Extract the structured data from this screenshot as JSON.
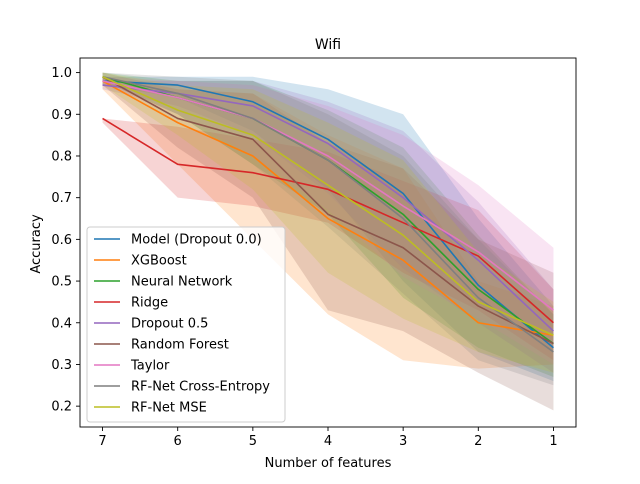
{
  "chart_data": {
    "type": "line",
    "title": "Wifi",
    "xlabel": "Number of features",
    "ylabel": "Accuracy",
    "x": [
      7,
      6,
      5,
      4,
      3,
      2,
      1
    ],
    "x_axis_reversed": true,
    "xlim": [
      7.3,
      0.7
    ],
    "ylim": [
      0.15,
      1.035
    ],
    "yticks": [
      0.2,
      0.3,
      0.4,
      0.5,
      0.6,
      0.7,
      0.8,
      0.9,
      1.0
    ],
    "ytick_labels": [
      "0.2",
      "0.3",
      "0.4",
      "0.5",
      "0.6",
      "0.7",
      "0.8",
      "0.9",
      "1.0"
    ],
    "xtick_labels": [
      "7",
      "6",
      "5",
      "4",
      "3",
      "2",
      "1"
    ],
    "grid": false,
    "legend_position": "lower-left",
    "series": [
      {
        "name": "Model (Dropout 0.0)",
        "color": "#1f77b4",
        "values": [
          0.98,
          0.97,
          0.93,
          0.84,
          0.71,
          0.49,
          0.34
        ],
        "lower": [
          0.97,
          0.94,
          0.86,
          0.72,
          0.5,
          0.33,
          0.26
        ],
        "upper": [
          0.99,
          0.99,
          0.99,
          0.96,
          0.9,
          0.65,
          0.44
        ]
      },
      {
        "name": "XGBoost",
        "color": "#ff7f0e",
        "values": [
          0.98,
          0.88,
          0.8,
          0.65,
          0.55,
          0.4,
          0.37
        ],
        "lower": [
          0.96,
          0.78,
          0.6,
          0.42,
          0.31,
          0.29,
          0.3
        ],
        "upper": [
          0.99,
          0.96,
          0.95,
          0.85,
          0.77,
          0.5,
          0.44
        ]
      },
      {
        "name": "Neural Network",
        "color": "#2ca02c",
        "values": [
          0.99,
          0.94,
          0.89,
          0.79,
          0.66,
          0.48,
          0.35
        ],
        "lower": [
          0.98,
          0.9,
          0.78,
          0.66,
          0.46,
          0.34,
          0.27
        ],
        "upper": [
          1.0,
          0.98,
          0.98,
          0.91,
          0.82,
          0.61,
          0.42
        ]
      },
      {
        "name": "Ridge",
        "color": "#d62728",
        "values": [
          0.89,
          0.78,
          0.76,
          0.72,
          0.64,
          0.56,
          0.4
        ],
        "lower": [
          0.88,
          0.7,
          0.68,
          0.64,
          0.52,
          0.43,
          0.31
        ],
        "upper": [
          0.89,
          0.87,
          0.84,
          0.81,
          0.74,
          0.67,
          0.48
        ]
      },
      {
        "name": "Dropout 0.5",
        "color": "#9467bd",
        "values": [
          0.97,
          0.95,
          0.92,
          0.83,
          0.7,
          0.55,
          0.38
        ],
        "lower": [
          0.96,
          0.92,
          0.85,
          0.71,
          0.53,
          0.4,
          0.28
        ],
        "upper": [
          0.98,
          0.98,
          0.98,
          0.93,
          0.86,
          0.69,
          0.48
        ]
      },
      {
        "name": "Random Forest",
        "color": "#8c564b",
        "values": [
          0.99,
          0.89,
          0.84,
          0.66,
          0.58,
          0.44,
          0.35
        ],
        "lower": [
          0.97,
          0.82,
          0.7,
          0.43,
          0.38,
          0.28,
          0.19
        ],
        "upper": [
          1.0,
          0.96,
          0.95,
          0.83,
          0.77,
          0.6,
          0.52
        ]
      },
      {
        "name": "Taylor",
        "color": "#e377c2",
        "values": [
          0.98,
          0.94,
          0.89,
          0.8,
          0.68,
          0.57,
          0.43
        ],
        "lower": [
          0.97,
          0.9,
          0.8,
          0.67,
          0.51,
          0.41,
          0.3
        ],
        "upper": [
          0.99,
          0.98,
          0.97,
          0.92,
          0.85,
          0.73,
          0.58
        ]
      },
      {
        "name": "RF-Net Cross-Entropy",
        "color": "#7f7f7f",
        "values": [
          0.99,
          0.95,
          0.89,
          0.79,
          0.65,
          0.46,
          0.33
        ],
        "lower": [
          0.98,
          0.9,
          0.78,
          0.63,
          0.47,
          0.31,
          0.25
        ],
        "upper": [
          1.0,
          0.99,
          0.98,
          0.9,
          0.8,
          0.6,
          0.42
        ]
      },
      {
        "name": "RF-Net MSE",
        "color": "#bcbd22",
        "values": [
          0.99,
          0.91,
          0.85,
          0.73,
          0.61,
          0.45,
          0.37
        ],
        "lower": [
          0.97,
          0.85,
          0.72,
          0.52,
          0.41,
          0.33,
          0.28
        ],
        "upper": [
          1.0,
          0.97,
          0.96,
          0.88,
          0.79,
          0.57,
          0.45
        ]
      }
    ]
  }
}
